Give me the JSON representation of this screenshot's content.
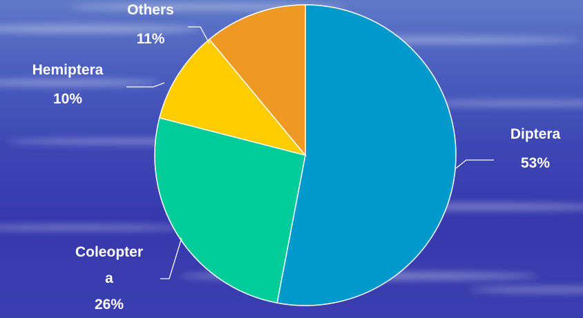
{
  "chart_data": {
    "type": "pie",
    "title": "",
    "start_angle_deg": 0,
    "direction": "clockwise",
    "slices": [
      {
        "label": "Diptera",
        "value": 53,
        "value_label": "53%",
        "color": "#0099cc",
        "label_lines": [
          "Diptera",
          "53%"
        ]
      },
      {
        "label": "Coleoptera",
        "value": 26,
        "value_label": "26%",
        "color": "#00cc99",
        "label_lines": [
          "Coleopter",
          "a",
          "26%"
        ]
      },
      {
        "label": "Hemiptera",
        "value": 10,
        "value_label": "10%",
        "color": "#ffcc00",
        "label_lines": [
          "Hemiptera",
          "10%"
        ]
      },
      {
        "label": "Others",
        "value": 11,
        "value_label": "11%",
        "color": "#ee9922",
        "label_lines": [
          "Others",
          "11%"
        ]
      }
    ]
  }
}
